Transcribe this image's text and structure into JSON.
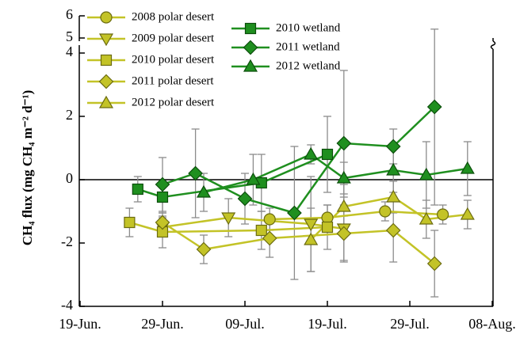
{
  "chart_data": {
    "type": "line",
    "ylabel": "CH₄ flux (mg CH₄ m⁻² d⁻¹)",
    "xlim": [
      0,
      50
    ],
    "xticks": [
      {
        "value": 0,
        "label": "19-Jun."
      },
      {
        "value": 10,
        "label": "29-Jun."
      },
      {
        "value": 20,
        "label": "09-Jul."
      },
      {
        "value": 30,
        "label": "19-Jul."
      },
      {
        "value": 40,
        "label": "29-Jul."
      },
      {
        "value": 50,
        "label": "08-Aug."
      }
    ],
    "ylim": [
      -4,
      6
    ],
    "ybreak": [
      4,
      5
    ],
    "yticks": [
      -4,
      -2,
      0,
      2,
      4,
      5,
      6
    ],
    "zero_line": true,
    "error_color": "#8c8c8c",
    "series": [
      {
        "name": "2008 polar desert",
        "marker": "circle",
        "color": "#c3c327",
        "edge": "#6b6b10",
        "x": [
          23,
          30,
          37,
          44
        ],
        "values": [
          -1.25,
          -1.2,
          -1.0,
          -1.1
        ],
        "errors": [
          0.35,
          0.4,
          0.3,
          0.3
        ]
      },
      {
        "name": "2009 polar desert",
        "marker": "triangle-down",
        "color": "#c3c327",
        "edge": "#6b6b10",
        "x": [
          10,
          18,
          28,
          32
        ],
        "values": [
          -1.5,
          -1.2,
          -1.4,
          -1.55
        ],
        "errors": [
          0.3,
          0.6,
          1.5,
          1.0
        ]
      },
      {
        "name": "2010 polar desert",
        "marker": "square",
        "color": "#c3c327",
        "edge": "#6b6b10",
        "x": [
          6,
          10,
          22,
          30
        ],
        "values": [
          -1.35,
          -1.65,
          -1.6,
          -1.5
        ],
        "errors": [
          0.45,
          0.5,
          0.6,
          0.7
        ]
      },
      {
        "name": "2011 polar desert",
        "marker": "diamond",
        "color": "#c3c327",
        "edge": "#6b6b10",
        "x": [
          10,
          15,
          23,
          32,
          38,
          43
        ],
        "values": [
          -1.35,
          -2.2,
          -1.85,
          -1.7,
          -1.6,
          -2.65
        ],
        "errors": [
          0.3,
          0.45,
          0.6,
          0.9,
          1.0,
          1.05
        ]
      },
      {
        "name": "2012 polar desert",
        "marker": "triangle-up",
        "color": "#c3c327",
        "edge": "#6b6b10",
        "x": [
          28,
          32,
          38,
          42,
          47
        ],
        "values": [
          -1.9,
          -0.85,
          -0.55,
          -1.25,
          -1.1
        ],
        "errors": [
          1.0,
          0.7,
          0.5,
          0.6,
          0.45
        ]
      },
      {
        "name": "2010 wetland",
        "marker": "square",
        "color": "#1f8f1f",
        "edge": "#0b4d0b",
        "x": [
          7,
          10,
          22,
          30
        ],
        "values": [
          -0.3,
          -0.55,
          -0.1,
          0.8
        ],
        "errors": [
          0.4,
          0.5,
          0.9,
          1.2
        ]
      },
      {
        "name": "2011 wetland",
        "marker": "diamond",
        "color": "#1f8f1f",
        "edge": "#0b4d0b",
        "x": [
          10,
          14,
          20,
          26,
          32,
          38,
          43
        ],
        "values": [
          -0.15,
          0.2,
          -0.6,
          -1.05,
          1.15,
          1.05,
          2.3
        ],
        "errors": [
          0.85,
          1.4,
          0.8,
          2.1,
          2.3,
          0.55,
          3.1
        ]
      },
      {
        "name": "2012 wetland",
        "marker": "triangle-up",
        "color": "#1f8f1f",
        "edge": "#0b4d0b",
        "x": [
          15,
          21,
          28,
          32,
          38,
          42,
          47
        ],
        "values": [
          -0.4,
          0.0,
          0.8,
          0.05,
          0.3,
          0.15,
          0.35
        ],
        "errors": [
          0.6,
          0.8,
          0.3,
          0.5,
          0.7,
          1.05,
          0.85
        ]
      }
    ]
  }
}
